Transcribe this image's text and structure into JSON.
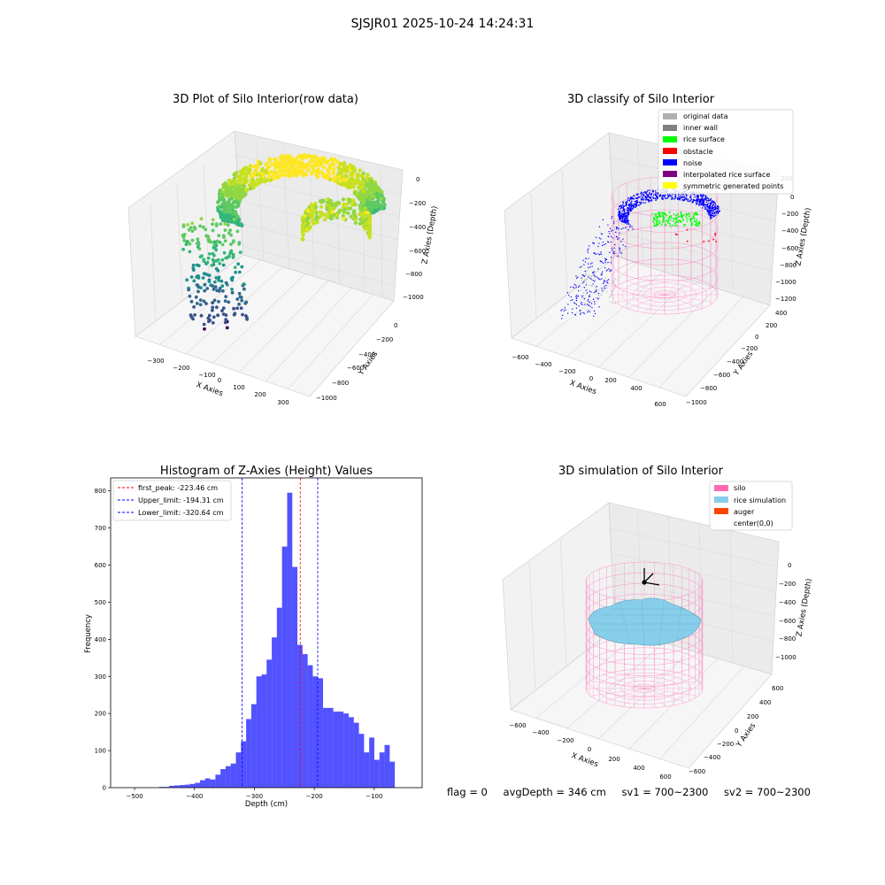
{
  "figure_title": "SJSJR01 2025-10-24 14:24:31",
  "status": {
    "flag": "flag = 0",
    "avg_depth": "avgDepth = 346 cm",
    "sv1": "sv1 = 700~2300",
    "sv2": "sv2 = 700~2300"
  },
  "colors": {
    "original_data": "#b0b0b0",
    "inner_wall": "#808080",
    "rice_surface": "#00ff00",
    "obstacle": "#ff0000",
    "noise": "#0000ff",
    "interpolated_rice_surface": "#800080",
    "symmetric_generated_points": "#ffff00",
    "silo": "#ff69b4",
    "rice_simulation": "#87ceeb",
    "auger": "#ff4500",
    "histogram_bar": "#0000ff",
    "first_peak": "#ff0000",
    "limits": "#0000ff"
  },
  "chart_data": [
    {
      "type": "scatter",
      "title": "3D Plot of Silo Interior(row data)",
      "xlabel": "X Axies",
      "ylabel": "Y Axies",
      "zlabel": "Z Axies (Depth)",
      "x_ticks": [
        "−300",
        "−200",
        "−100",
        "0",
        "100",
        "200",
        "300"
      ],
      "y_ticks": [
        "0",
        "−200",
        "−400",
        "−600",
        "−800",
        "−1000"
      ],
      "z_ticks": [
        "0",
        "−200",
        "−400",
        "−600",
        "−800",
        "−1000"
      ]
    },
    {
      "type": "scatter",
      "title": "3D classify of Silo Interior",
      "xlabel": "X Axies",
      "ylabel": "Y Axies",
      "zlabel": "Z Axies (Depth)",
      "x_ticks": [
        "−600",
        "−400",
        "−200",
        "0",
        "200",
        "400",
        "600"
      ],
      "y_ticks": [
        "400",
        "200",
        "0",
        "−200",
        "−400",
        "−600",
        "−800",
        "−1000"
      ],
      "z_ticks": [
        "200",
        "0",
        "−200",
        "−400",
        "−600",
        "−800",
        "−1000",
        "−1200"
      ],
      "legend": [
        "original data",
        "inner wall",
        "rice surface",
        "obstacle",
        "noise",
        "interpolated rice surface",
        "symmetric generated points"
      ],
      "legend_position": "upper-right"
    },
    {
      "type": "bar",
      "title": "Histogram of Z-Axies (Height) Values",
      "xlabel": "Depth (cm)",
      "ylabel": "Frequency",
      "xlim": [
        -540,
        -20
      ],
      "ylim": [
        0,
        835
      ],
      "x_ticks": [
        -500,
        -400,
        -300,
        -200,
        -100
      ],
      "x_tick_labels": [
        "−500",
        "−400",
        "−300",
        "−200",
        "−100"
      ],
      "y_ticks": [
        0,
        100,
        200,
        300,
        400,
        500,
        600,
        700,
        800
      ],
      "bin_width": 8.56,
      "bins_start": [
        -459.3,
        -450.7,
        -442.2,
        -433.6,
        -425.0,
        -416.5,
        -407.9,
        -399.4,
        -390.8,
        -382.3,
        -373.7,
        -365.1,
        -356.6,
        -348.0,
        -339.5,
        -330.9,
        -322.4,
        -313.8,
        -305.2,
        -296.7,
        -288.1,
        -279.6,
        -271.0,
        -262.5,
        -253.9,
        -245.3,
        -236.8,
        -228.2,
        -219.7,
        -211.1,
        -202.5,
        -194.0,
        -185.4,
        -176.9,
        -168.3,
        -159.8,
        -151.2,
        -142.6,
        -134.1,
        -125.5,
        -117.0,
        -108.4,
        -99.9,
        -91.3,
        -82.7,
        -74.2,
        -65.6,
        -57.1,
        -48.5,
        -40.0
      ],
      "values": [
        2,
        2,
        5,
        6,
        7,
        8,
        10,
        13,
        20,
        25,
        22,
        35,
        50,
        58,
        65,
        95,
        125,
        185,
        225,
        300,
        305,
        345,
        405,
        485,
        650,
        795,
        595,
        385,
        360,
        330,
        300,
        295,
        215,
        215,
        205,
        205,
        200,
        190,
        175,
        145,
        95,
        135,
        75,
        95,
        115,
        70,
        0,
        0,
        0,
        0
      ],
      "reference_lines": [
        {
          "label": "first_peak: -223.46 cm",
          "x": -223.46,
          "color": "#ff0000"
        },
        {
          "label": "Upper_limit: -194.31 cm",
          "x": -194.31,
          "color": "#0000ff"
        },
        {
          "label": "Lower_limit: -320.64 cm",
          "x": -320.64,
          "color": "#0000ff"
        }
      ],
      "legend_position": "upper-left"
    },
    {
      "type": "scatter",
      "title": "3D simulation of Silo Interior",
      "xlabel": "X Axies",
      "ylabel": "Y Axies",
      "zlabel": "Z Axies (Depth)",
      "x_ticks": [
        "−600",
        "−400",
        "−200",
        "0",
        "200",
        "400",
        "600"
      ],
      "y_ticks": [
        "600",
        "400",
        "200",
        "0",
        "−200",
        "−400",
        "−600"
      ],
      "z_ticks": [
        "0",
        "−200",
        "−400",
        "−600",
        "−800",
        "−1000"
      ],
      "legend": [
        "silo",
        "rice simulation",
        "auger",
        "center(0,0)"
      ],
      "legend_position": "upper-right"
    }
  ]
}
